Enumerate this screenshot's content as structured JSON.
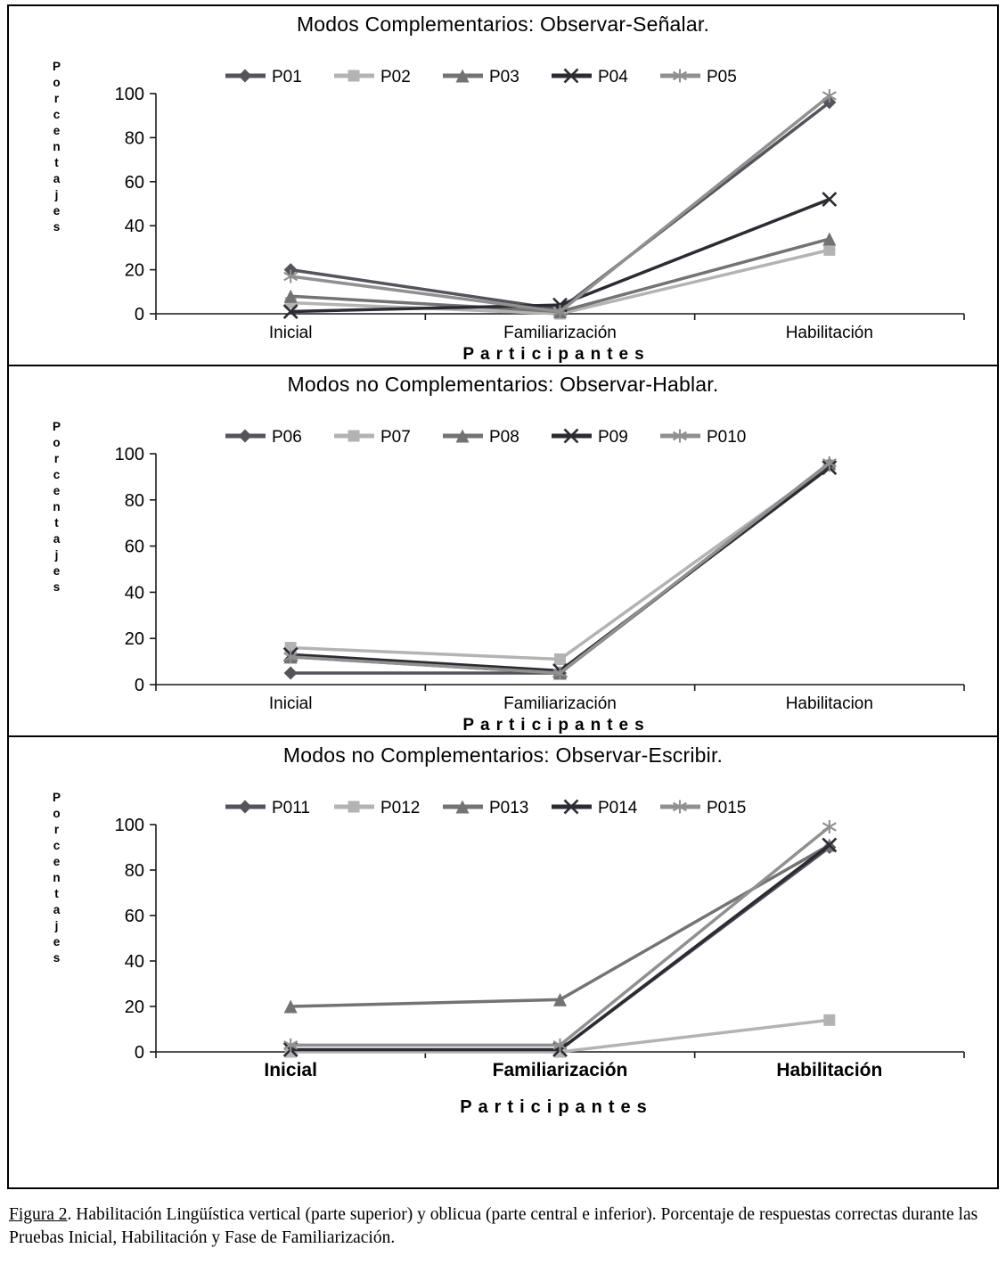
{
  "caption": {
    "label": "Figura 2",
    "text": ". Habilitación Lingüística vertical (parte superior) y oblicua (parte central e inferior). Porcentaje de respuestas correctas durante las Pruebas Inicial, Habilitación y Fase de Familiarización."
  },
  "chart_data": [
    {
      "type": "line",
      "title": "Modos Complementarios: Observar-Señalar.",
      "ylabel": "Porcentajes",
      "xlabel": "Participantes",
      "ylim": [
        0,
        100
      ],
      "yticks": [
        0,
        20,
        40,
        60,
        80,
        100
      ],
      "categories": [
        "Inicial",
        "Familiarización",
        "Habilitación"
      ],
      "legend_position": "top",
      "grid": false,
      "series": [
        {
          "name": "P01",
          "marker": "diamond",
          "color": "#54545c",
          "values": [
            20,
            2,
            96
          ]
        },
        {
          "name": "P02",
          "marker": "square",
          "color": "#b3b3b3",
          "values": [
            5,
            0,
            29
          ]
        },
        {
          "name": "P03",
          "marker": "triangle",
          "color": "#737373",
          "values": [
            8,
            1,
            34
          ]
        },
        {
          "name": "P04",
          "marker": "x",
          "color": "#2b2b33",
          "values": [
            1,
            4,
            52
          ]
        },
        {
          "name": "P05",
          "marker": "star",
          "color": "#909090",
          "values": [
            17,
            1,
            99
          ]
        }
      ]
    },
    {
      "type": "line",
      "title": "Modos no Complementarios: Observar-Hablar.",
      "ylabel": "Porcentajes",
      "xlabel": "Participantes",
      "ylim": [
        0,
        100
      ],
      "yticks": [
        0,
        20,
        40,
        60,
        80,
        100
      ],
      "categories": [
        "Inicial",
        "Familiarización",
        "Habilitacion"
      ],
      "legend_position": "top",
      "grid": false,
      "series": [
        {
          "name": "P06",
          "marker": "diamond",
          "color": "#54545c",
          "values": [
            5,
            5,
            95
          ]
        },
        {
          "name": "P07",
          "marker": "square",
          "color": "#b3b3b3",
          "values": [
            16,
            11,
            95
          ]
        },
        {
          "name": "P08",
          "marker": "triangle",
          "color": "#737373",
          "values": [
            12,
            5,
            96
          ]
        },
        {
          "name": "P09",
          "marker": "x",
          "color": "#2b2b33",
          "values": [
            13,
            6,
            94
          ]
        },
        {
          "name": "P010",
          "marker": "star",
          "color": "#909090",
          "values": [
            12,
            5,
            96
          ]
        }
      ]
    },
    {
      "type": "line",
      "title": "Modos no Complementarios: Observar-Escribir.",
      "ylabel": "Porcentajes",
      "xlabel": "Participantes",
      "ylim": [
        0,
        100
      ],
      "yticks": [
        0,
        20,
        40,
        60,
        80,
        100
      ],
      "categories": [
        "Inicial",
        "Familiarización",
        "Habilitación"
      ],
      "legend_position": "top",
      "grid": false,
      "series": [
        {
          "name": "P011",
          "marker": "diamond",
          "color": "#54545c",
          "values": [
            1,
            1,
            90
          ]
        },
        {
          "name": "P012",
          "marker": "square",
          "color": "#b3b3b3",
          "values": [
            0,
            0,
            14
          ]
        },
        {
          "name": "P013",
          "marker": "triangle",
          "color": "#737373",
          "values": [
            20,
            23,
            91
          ]
        },
        {
          "name": "P014",
          "marker": "x",
          "color": "#2b2b33",
          "values": [
            1,
            1,
            91
          ]
        },
        {
          "name": "P015",
          "marker": "star",
          "color": "#909090",
          "values": [
            3,
            3,
            99
          ]
        }
      ]
    }
  ]
}
